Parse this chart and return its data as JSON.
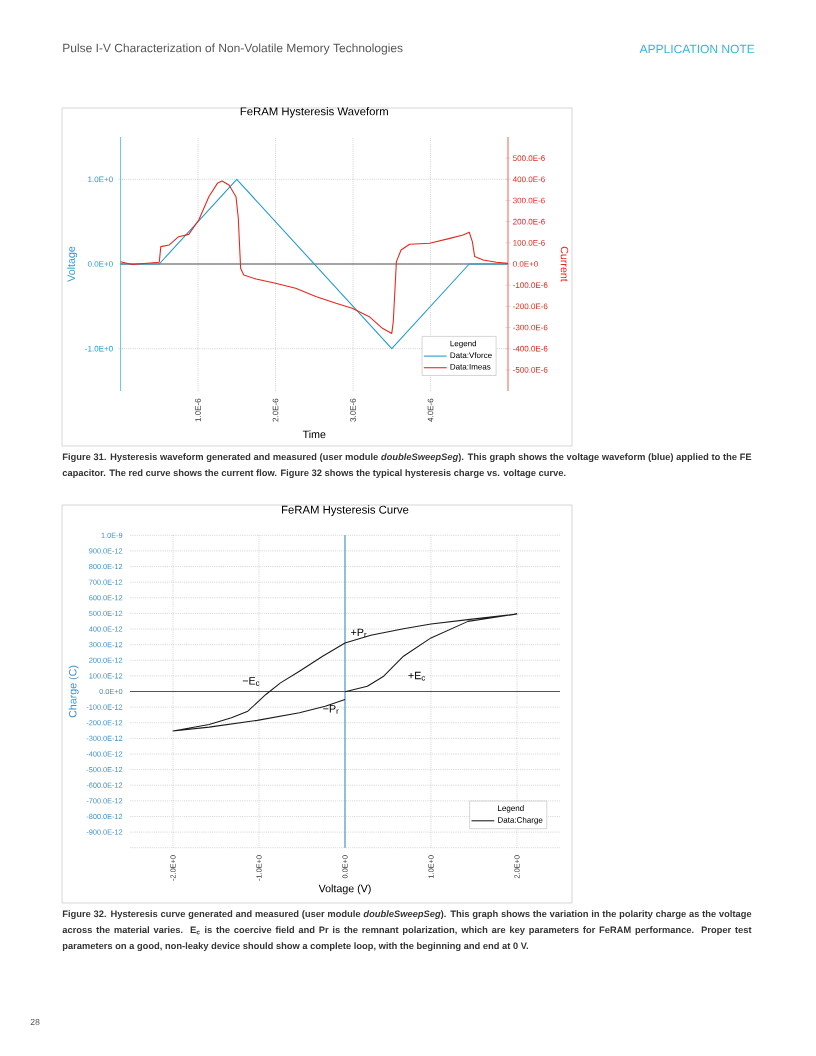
{
  "chart_data": [
    {
      "type": "line",
      "title": "FeRAM Hysteresis Waveform",
      "xlabel": "Time",
      "ylabel": "Voltage",
      "y2label": "Current",
      "legend_title": "Legend",
      "xlim": [
        0,
        5e-06
      ],
      "xticks": [
        {
          "value": 1e-06,
          "label": "1.0E-6"
        },
        {
          "value": 2e-06,
          "label": "2.0E-6"
        },
        {
          "value": 3e-06,
          "label": "3.0E-6"
        },
        {
          "value": 4e-06,
          "label": "4.0E-6"
        }
      ],
      "ylim": [
        -1.5,
        1.5
      ],
      "yticks": [
        {
          "value": -1,
          "label": "-1.0E+0"
        },
        {
          "value": 0,
          "label": "0.0E+0"
        },
        {
          "value": 1,
          "label": "1.0E+0"
        }
      ],
      "y2lim": [
        -0.0006,
        0.0006
      ],
      "y2ticks": [
        {
          "value": -0.0005,
          "label": "-500.0E-6"
        },
        {
          "value": -0.0004,
          "label": "-400.0E-6"
        },
        {
          "value": -0.0003,
          "label": "-300.0E-6"
        },
        {
          "value": -0.0002,
          "label": "-200.0E-6"
        },
        {
          "value": -0.0001,
          "label": "-100.0E-6"
        },
        {
          "value": 0,
          "label": "0.0E+0"
        },
        {
          "value": 0.0001,
          "label": "100.0E-6"
        },
        {
          "value": 0.0002,
          "label": "200.0E-6"
        },
        {
          "value": 0.0003,
          "label": "300.0E-6"
        },
        {
          "value": 0.0004,
          "label": "400.0E-6"
        },
        {
          "value": 0.0005,
          "label": "500.0E-6"
        }
      ],
      "grid": true,
      "legend": "bottom right",
      "ref_lines": [
        {
          "axis": "y",
          "value": 0,
          "color": "#555555"
        }
      ],
      "series": [
        {
          "name": "Data:Vforce",
          "color": "#1f9bd1",
          "x": [
            0,
            5e-07,
            1.5e-06,
            3.5e-06,
            4.5e-06,
            5e-06
          ],
          "values": [
            0,
            0,
            1,
            -1,
            0,
            0
          ]
        },
        {
          "name": "Data:Imeas",
          "color": "#e8261c",
          "axis": "y2",
          "x": [
            0,
            1.5e-07,
            5e-07,
            5.2e-07,
            6.3e-07,
            7.5e-07,
            8.8e-07,
            1.01e-06,
            1.14e-06,
            1.25e-06,
            1.31e-06,
            1.4e-06,
            1.49e-06,
            1.52e-06,
            1.55e-06,
            1.59e-06,
            1.75e-06,
            2e-06,
            2.26e-06,
            2.52e-06,
            2.78e-06,
            2.99e-06,
            3.21e-06,
            3.38e-06,
            3.5e-06,
            3.52e-06,
            3.56e-06,
            3.62e-06,
            3.73e-06,
            3.99e-06,
            4.25e-06,
            4.42e-06,
            4.5e-06,
            4.54e-06,
            4.57e-06,
            4.68e-06,
            4.85e-06,
            5e-06
          ],
          "values": [
            1.1e-05,
            -2e-06,
            8e-06,
            8.2e-05,
            9e-05,
            0.000129,
            0.00014,
            0.000208,
            0.000318,
            0.000381,
            0.000392,
            0.000373,
            0.000318,
            0.000216,
            -2e-05,
            -5.2e-05,
            -7.1e-05,
            -9.1e-05,
            -0.000115,
            -0.000154,
            -0.000186,
            -0.000209,
            -0.000249,
            -0.000304,
            -0.000328,
            -0.000272,
            1.1e-05,
            6.6e-05,
            9.3e-05,
            9.8e-05,
            0.000121,
            0.000137,
            0.00015,
            0.000106,
            3.5e-05,
            1.9e-05,
            8e-06,
            3e-06
          ]
        }
      ],
      "annotations": [
        "Pulse I-V Characterization of Non-Volatile Memory Technologies",
        "APPLICATION NOTE",
        "Figure 31. Hysteresis waveform generated and measured (user module *doubleSweepSeg*). This graph shows the voltage waveform (blue) applied to the FE capacitor. The red curve shows the current flow. Figure 32 shows the typical hysteresis charge vs. voltage curve."
      ]
    },
    {
      "type": "line",
      "title": "FeRAM Hysteresis Curve",
      "xlabel": "Voltage (V)",
      "ylabel": "Charge (C)",
      "legend_title": "Legend",
      "xlim": [
        -2.5,
        2.5
      ],
      "xticks": [
        {
          "value": -2,
          "label": "-2.0E+0"
        },
        {
          "value": -1,
          "label": "-1.0E+0"
        },
        {
          "value": 0,
          "label": "0.0E+0"
        },
        {
          "value": 1,
          "label": "1.0E+0"
        },
        {
          "value": 2,
          "label": "2.0E+0"
        }
      ],
      "ylim": [
        -1e-09,
        1e-09
      ],
      "yticks": [
        {
          "value": -1e-09,
          "label": null
        },
        {
          "value": -9e-10,
          "label": "-900.0E-12"
        },
        {
          "value": -8e-10,
          "label": "-800.0E-12"
        },
        {
          "value": -7e-10,
          "label": "-700.0E-12"
        },
        {
          "value": -6e-10,
          "label": "-600.0E-12"
        },
        {
          "value": -5e-10,
          "label": "-500.0E-12"
        },
        {
          "value": -4e-10,
          "label": "-400.0E-12"
        },
        {
          "value": -3e-10,
          "label": "-300.0E-12"
        },
        {
          "value": -2e-10,
          "label": "-200.0E-12"
        },
        {
          "value": -1e-10,
          "label": "-100.0E-12"
        },
        {
          "value": 0,
          "label": "0.0E+0"
        },
        {
          "value": 1e-10,
          "label": "100.0E-12"
        },
        {
          "value": 2e-10,
          "label": "200.0E-12"
        },
        {
          "value": 3e-10,
          "label": "300.0E-12"
        },
        {
          "value": 4e-10,
          "label": "400.0E-12"
        },
        {
          "value": 5e-10,
          "label": "500.0E-12"
        },
        {
          "value": 6e-10,
          "label": "600.0E-12"
        },
        {
          "value": 7e-10,
          "label": "700.0E-12"
        },
        {
          "value": 8e-10,
          "label": "800.0E-12"
        },
        {
          "value": 9e-10,
          "label": "900.0E-12"
        },
        {
          "value": 1e-09,
          "label": "1.0E-9"
        }
      ],
      "grid": true,
      "legend": "bottom right",
      "ref_lines": [
        {
          "axis": "y",
          "value": 0,
          "color": "#555555"
        },
        {
          "axis": "x",
          "value": 0,
          "color": "#3b8fc8"
        }
      ],
      "series": [
        {
          "name": "Data:Charge",
          "color": "#1a1a1a",
          "x": [
            0,
            0.26,
            0.45,
            0.68,
            1.0,
            1.43,
            2.0,
            1.43,
            1.0,
            0.68,
            0.3,
            0,
            -0.26,
            -0.53,
            -0.75,
            -0.92,
            -1.13,
            -1.32,
            -1.58,
            -2.0,
            -1.58,
            -1.02,
            -0.53,
            -0.23,
            0
          ],
          "values": [
            -2e-12,
            3.4e-11,
            9.8e-11,
            2.26e-10,
            3.43e-10,
            4.49e-10,
            4.96e-10,
            4.6e-10,
            4.32e-10,
            4.02e-10,
            3.6e-10,
            3.11e-10,
            2.26e-10,
            1.3e-10,
            5.5e-11,
            -1.9e-11,
            -1.26e-10,
            -1.68e-10,
            -2.11e-10,
            -2.53e-10,
            -2.28e-10,
            -1.85e-10,
            -1.36e-10,
            -9.4e-11,
            -5.1e-11
          ]
        }
      ],
      "annotations": [
        {
          "text": "+P$_{r}$",
          "x": 0,
          "y": 3.11e-10
        },
        {
          "text": "−P$_{r}$",
          "x": 0,
          "y": -5.1e-11
        },
        {
          "text": "−E$_{c}$",
          "x": -0.92,
          "y": 0
        },
        {
          "text": "+E$_{c}$",
          "x": 0.45,
          "y": 9.8e-11
        },
        "Figure 32. Hysteresis curve generated and measured (user module *doubleSweepSeg*). This graph shows the variation in the polarity charge as the voltage across the material varies. E$_{c}$ is the coercive field and Pr is the remnant polarization, which are key parameters for FeRAM performance. Proper test parameters on a good, non-leaky device should show a complete loop, with the beginning and end at 0 V.",
        "28"
      ]
    }
  ]
}
